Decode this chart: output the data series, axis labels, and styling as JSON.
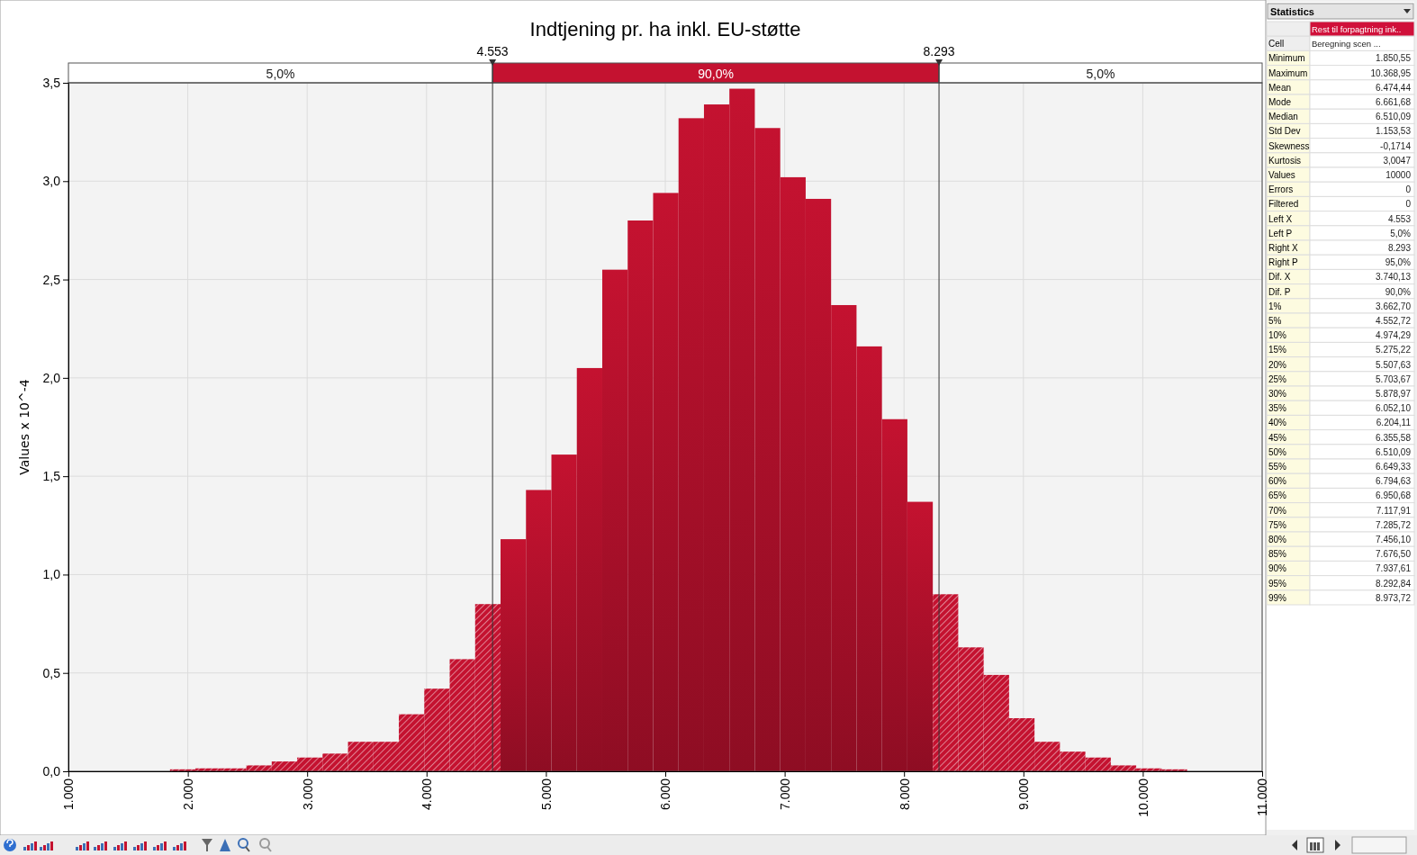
{
  "chart_data": [
    {
      "type": "histogram",
      "title": "Indtjening pr. ha inkl. EU-støtte",
      "ylabel": "Values x 10^-4",
      "bins": [
        1851,
        2064,
        2277,
        2490,
        2703,
        2916,
        3129,
        3342,
        3555,
        3768,
        3981,
        4194,
        4407,
        4620,
        4833,
        5046,
        5259,
        5472,
        5685,
        5898,
        6111,
        6324,
        6537,
        6750,
        6963,
        7176,
        7389,
        7602,
        7815,
        8028,
        8241,
        8454,
        8667,
        8880,
        9093,
        9306,
        9519,
        9732,
        9945,
        10158,
        10371
      ],
      "values": [
        0.01,
        0.015,
        0.015,
        0.03,
        0.05,
        0.07,
        0.09,
        0.15,
        0.15,
        0.29,
        0.42,
        0.57,
        0.85,
        1.18,
        1.43,
        1.61,
        2.05,
        2.55,
        2.8,
        2.94,
        3.32,
        3.39,
        3.47,
        3.27,
        3.02,
        2.91,
        2.37,
        2.16,
        1.79,
        1.37,
        0.9,
        0.63,
        0.49,
        0.27,
        0.15,
        0.1,
        0.07,
        0.03,
        0.015,
        0.01
      ],
      "color": "#c41230",
      "xlim": [
        1000,
        11000
      ],
      "xticks": [
        {
          "value": 1000,
          "label": "1.000"
        },
        {
          "value": 2000,
          "label": "2.000"
        },
        {
          "value": 3000,
          "label": "3.000"
        },
        {
          "value": 4000,
          "label": "4.000"
        },
        {
          "value": 5000,
          "label": "5.000"
        },
        {
          "value": 6000,
          "label": "6.000"
        },
        {
          "value": 7000,
          "label": "7.000"
        },
        {
          "value": 8000,
          "label": "8.000"
        },
        {
          "value": 9000,
          "label": "9.000"
        },
        {
          "value": 10000,
          "label": "10.000"
        },
        {
          "value": 11000,
          "label": "11.000"
        }
      ],
      "ylim": [
        0,
        3.5
      ],
      "yticks": [
        {
          "value": 0,
          "label": "0,0"
        },
        {
          "value": 0.5,
          "label": "0,5"
        },
        {
          "value": 1,
          "label": "1,0"
        },
        {
          "value": 1.5,
          "label": "1,5"
        },
        {
          "value": 2,
          "label": "2,0"
        },
        {
          "value": 2.5,
          "label": "2,5"
        },
        {
          "value": 3,
          "label": "3,0"
        },
        {
          "value": 3.5,
          "label": "3,5"
        }
      ],
      "grid": true,
      "ref_lines": [
        {
          "axis": "x",
          "value": 4553,
          "label": "4.553"
        },
        {
          "axis": "x",
          "value": 8293,
          "label": "8.293"
        }
      ],
      "annotations": [
        "5,0%",
        "90,0%",
        "5,0%"
      ]
    },
    {
      "type": "other",
      "title": "Statistics",
      "categories": [
        null,
        "Cell",
        "Minimum",
        "Maximum",
        "Mean",
        "Mode",
        "Median",
        "Std Dev",
        "Skewness",
        "Kurtosis",
        "Values",
        "Errors",
        "Filtered",
        "Left X",
        "Left P",
        "Right X",
        "Right P",
        "Dif. X",
        "Dif. P",
        "1%",
        "5%",
        "10%",
        "15%",
        "20%",
        "25%",
        "30%",
        "35%",
        "40%",
        "45%",
        "50%",
        "55%",
        "60%",
        "65%",
        "70%",
        "75%",
        "80%",
        "85%",
        "90%",
        "95%",
        "99%"
      ],
      "value_labels": [
        "Rest til forpagtning ink..",
        "Beregning scen ...",
        "1.850,55",
        "10.368,95",
        "6.474,44",
        "6.661,68",
        "6.510,09",
        "1.153,53",
        "-0,1714",
        "3,0047",
        "10000",
        "0",
        "0",
        "4.553",
        "5,0%",
        "8.293",
        "95,0%",
        "3.740,13",
        "90,0%",
        "3.662,70",
        "4.552,72",
        "4.974,29",
        "5.275,22",
        "5.507,63",
        "5.703,67",
        "5.878,97",
        "6.052,10",
        "6.204,11",
        "6.355,58",
        "6.510,09",
        "6.649,33",
        "6.794,63",
        "6.950,68",
        "7.117,91",
        "7.285,72",
        "7.456,10",
        "7.676,50",
        "7.937,61",
        "8.292,84",
        "8.973,72"
      ]
    }
  ]
}
